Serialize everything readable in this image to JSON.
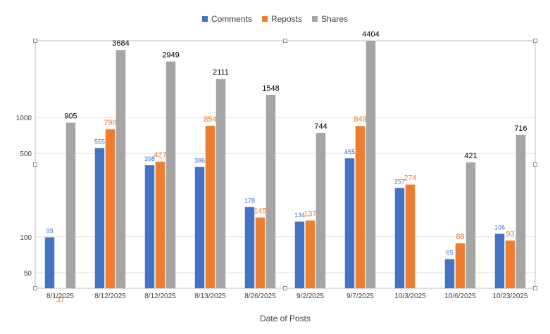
{
  "chart_data": {
    "type": "bar",
    "categories": [
      "8/1/2025",
      "8/12/2025",
      "8/12/2025",
      "8/13/2025",
      "8/26/2025",
      "9/2/2025",
      "9/7/2025",
      "10/3/2025",
      "10/6/2025",
      "10/23/2025"
    ],
    "series": [
      {
        "name": "Comments",
        "color": "#4472C4",
        "values": [
          99,
          555,
          398,
          386,
          178,
          134,
          455,
          257,
          65,
          106
        ]
      },
      {
        "name": "Reposts",
        "color": "#ED7D31",
        "values": [
          37,
          796,
          427,
          854,
          145,
          137,
          849,
          274,
          88,
          93
        ]
      },
      {
        "name": "Shares",
        "color": "#A5A5A5",
        "values": [
          905,
          3684,
          2949,
          2111,
          1548,
          744,
          4404,
          null,
          421,
          716
        ]
      }
    ],
    "xlabel": "Date of Posts",
    "ylabel": "",
    "yscale": "log",
    "ylim": [
      37,
      4404
    ],
    "yticks": [
      50,
      100,
      500,
      1000
    ],
    "ytick_labels": [
      "50",
      "100",
      "500",
      "1000"
    ],
    "grid": true,
    "legend_position": "top"
  }
}
